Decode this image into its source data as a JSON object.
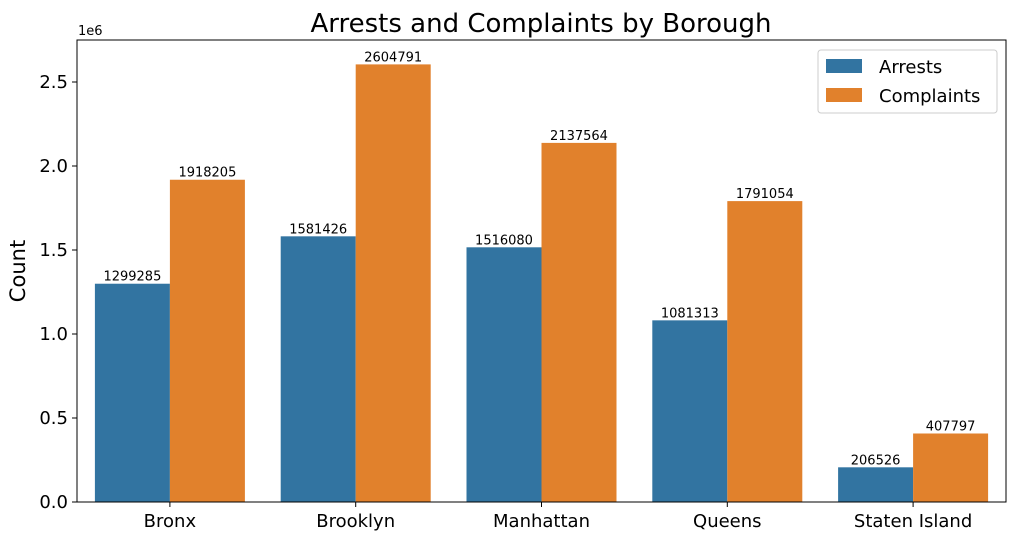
{
  "chart_data": {
    "type": "bar",
    "title": "Arrests and Complaints by Borough",
    "xlabel": "",
    "ylabel": "Count",
    "y_offset_label": "1e6",
    "ylim": [
      0,
      2750000
    ],
    "yticks": [
      0,
      500000,
      1000000,
      1500000,
      2000000,
      2500000
    ],
    "ytick_labels": [
      "0.0",
      "0.5",
      "1.0",
      "1.5",
      "2.0",
      "2.5"
    ],
    "categories": [
      "Bronx",
      "Brooklyn",
      "Manhattan",
      "Queens",
      "Staten Island"
    ],
    "series": [
      {
        "name": "Arrests",
        "color": "#3274a1",
        "values": [
          1299285,
          1581426,
          1516080,
          1081313,
          206526
        ]
      },
      {
        "name": "Complaints",
        "color": "#e1812c",
        "values": [
          1918205,
          2604791,
          2137564,
          1791054,
          407797
        ]
      }
    ],
    "legend_position": "top-right",
    "grid": false
  }
}
